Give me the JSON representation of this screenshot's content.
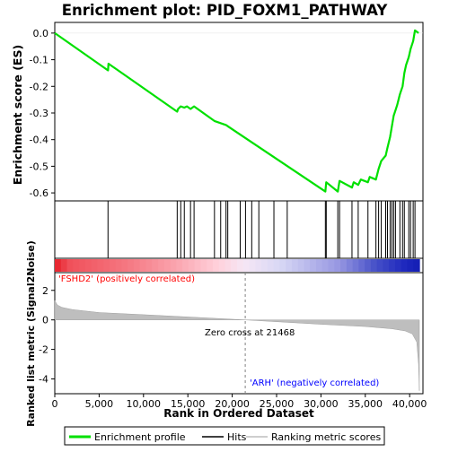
{
  "chart_data": {
    "type": "line",
    "title": "Enrichment plot: PID_FOXM1_PATHWAY",
    "top_panel": {
      "ylabel": "Enrichment score (ES)",
      "ylim": [
        -0.63,
        0.04
      ],
      "yticks": [
        0.0,
        -0.1,
        -0.2,
        -0.3,
        -0.4,
        -0.5,
        -0.6
      ],
      "ytick_labels": [
        "0.0",
        "-0.1",
        "-0.2",
        "-0.3",
        "-0.4",
        "-0.5",
        "-0.6"
      ],
      "series": [
        {
          "name": "Enrichment profile",
          "color": "#00e000",
          "x": [
            0,
            6000,
            6050,
            13800,
            13900,
            14200,
            14600,
            14900,
            15300,
            15700,
            18000,
            19300,
            19500,
            30500,
            30600,
            31900,
            32100,
            33500,
            33700,
            34200,
            34500,
            35300,
            35500,
            36200,
            36500,
            36800,
            37300,
            37500,
            37800,
            38000,
            38200,
            38400,
            38600,
            38900,
            39200,
            39400,
            39600,
            39900,
            40100,
            40400,
            40600,
            41000
          ],
          "y": [
            0.0,
            -0.14,
            -0.115,
            -0.295,
            -0.285,
            -0.275,
            -0.28,
            -0.275,
            -0.285,
            -0.275,
            -0.33,
            -0.345,
            -0.35,
            -0.595,
            -0.56,
            -0.595,
            -0.555,
            -0.58,
            -0.56,
            -0.57,
            -0.55,
            -0.56,
            -0.54,
            -0.55,
            -0.51,
            -0.48,
            -0.46,
            -0.43,
            -0.39,
            -0.35,
            -0.31,
            -0.29,
            -0.27,
            -0.23,
            -0.2,
            -0.15,
            -0.12,
            -0.09,
            -0.06,
            -0.03,
            0.01,
            0.0
          ]
        }
      ]
    },
    "hits": {
      "name": "Hits",
      "x": [
        6000,
        13800,
        14200,
        14600,
        15300,
        15700,
        18000,
        18700,
        19300,
        19500,
        20900,
        21500,
        22200,
        23000,
        24700,
        26200,
        30500,
        30600,
        31900,
        32100,
        33500,
        34200,
        35300,
        36200,
        36500,
        36800,
        37300,
        37500,
        37800,
        38000,
        38200,
        38400,
        38900,
        39200,
        39400,
        39900,
        40100,
        40400,
        40600
      ]
    },
    "ranked_metric": {
      "name": "Ranking metric scores",
      "ylabel": "Ranked list metric (Signal2Noise)",
      "ylim": [
        -5,
        3.2
      ],
      "yticks": [
        2,
        0,
        -2,
        -4
      ],
      "ytick_labels": [
        "2",
        "0",
        "-2",
        "-4"
      ],
      "x": [
        0,
        300,
        800,
        2000,
        5000,
        10000,
        15000,
        21468,
        25000,
        30000,
        35000,
        38000,
        39500,
        40300,
        40800,
        41000,
        41100
      ],
      "y": [
        1.3,
        1.0,
        0.85,
        0.7,
        0.5,
        0.35,
        0.2,
        0.0,
        -0.12,
        -0.3,
        -0.45,
        -0.6,
        -0.75,
        -0.95,
        -1.5,
        -3.0,
        -4.8
      ]
    },
    "xlabel": "Rank in Ordered Dataset",
    "xlim": [
      0,
      41500
    ],
    "xticks": [
      0,
      5000,
      10000,
      15000,
      20000,
      25000,
      30000,
      35000,
      40000
    ],
    "xtick_labels": [
      "0",
      "5,000",
      "10,000",
      "15,000",
      "20,000",
      "25,000",
      "30,000",
      "35,000",
      "40,000"
    ],
    "zero_cross_label": "Zero cross at 21468",
    "zero_cross_x": 21468,
    "positive_label": "'FSHD2' (positively correlated)",
    "negative_label": "'ARH' (negatively correlated)",
    "legend": [
      "Enrichment profile",
      "Hits",
      "Ranking metric scores"
    ],
    "legend_placement": "bottom",
    "colors": {
      "profile": "#00e000",
      "hits": "#000000",
      "metric_fill": "#bebebe",
      "positive_label": "#ff0000",
      "negative_label": "#0000ff",
      "zero_line": "#808080"
    }
  }
}
